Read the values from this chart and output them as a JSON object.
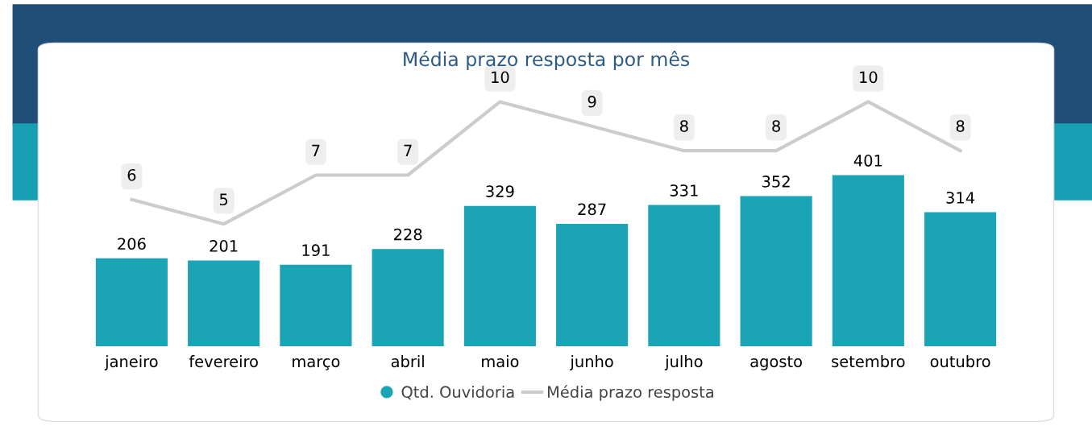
{
  "chart_data": {
    "type": "bar",
    "title": "Média prazo resposta por mês",
    "categories": [
      "janeiro",
      "fevereiro",
      "março",
      "abril",
      "maio",
      "junho",
      "julho",
      "agosto",
      "setembro",
      "outubro"
    ],
    "series": [
      {
        "name": "Qtd. Ouvidoria",
        "color": "#1ba3b6",
        "values": [
          206,
          201,
          191,
          228,
          329,
          287,
          331,
          352,
          401,
          314
        ]
      },
      {
        "name": "Média prazo resposta",
        "type": "line",
        "axis": "y2",
        "color": "#cccccc",
        "values": [
          6,
          5,
          7,
          7,
          10,
          9,
          8,
          8,
          10,
          8
        ]
      }
    ],
    "data_labels": true,
    "legend": "bottom",
    "grid": false,
    "marker": "none",
    "line_style": "solid"
  }
}
